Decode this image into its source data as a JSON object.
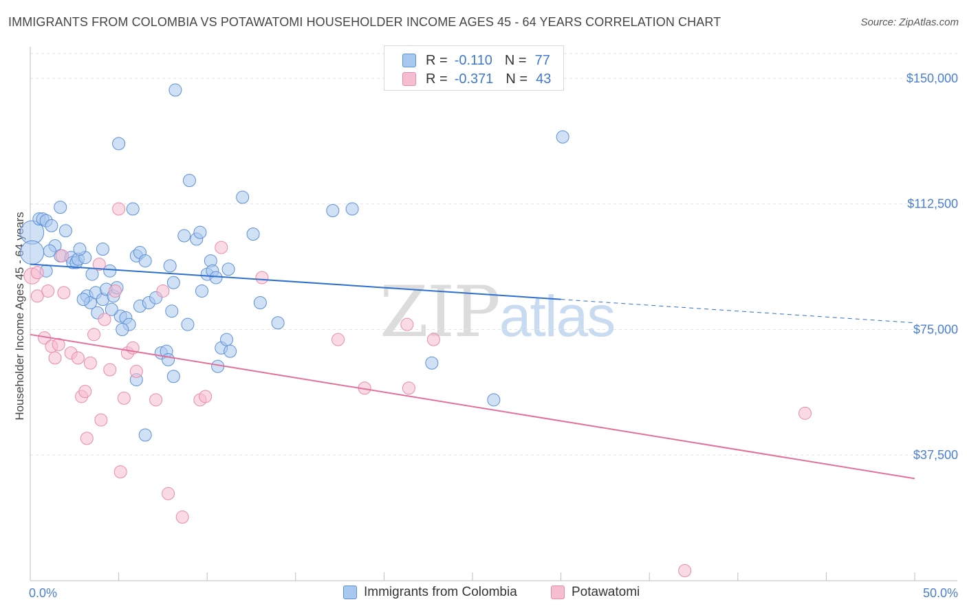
{
  "header": {
    "title": "IMMIGRANTS FROM COLOMBIA VS POTAWATOMI HOUSEHOLDER INCOME AGES 45 - 64 YEARS CORRELATION CHART",
    "source": "Source: ZipAtlas.com"
  },
  "watermark": {
    "zip": "ZIP",
    "atlas": "atlas"
  },
  "legend": {
    "r_label": "R =",
    "n_label": "N =",
    "series": [
      {
        "r": "-0.110",
        "n": "77"
      },
      {
        "r": "-0.371",
        "n": "43"
      }
    ]
  },
  "bottom_legend": {
    "items": [
      "Immigrants from Colombia",
      "Potawatomi"
    ]
  },
  "colors": {
    "blue_fill": "#a9c8ef",
    "blue_stroke": "#5b8fd6",
    "blue_line": "#2c6fcf",
    "pink_fill": "#f6bcd0",
    "pink_stroke": "#e88aab",
    "pink_line": "#e3709a",
    "grid": "#e3e3e3",
    "tick_text": "#4a7fd0"
  },
  "chart_data": {
    "type": "scatter",
    "title": "IMMIGRANTS FROM COLOMBIA VS POTAWATOMI HOUSEHOLDER INCOME AGES 45 - 64 YEARS CORRELATION CHART",
    "xlabel": "",
    "ylabel": "Householder Income Ages 45 - 64 years",
    "xlim": [
      0,
      50
    ],
    "ylim": [
      0,
      158000
    ],
    "x_ticks": [
      {
        "value": 0,
        "label": "0.0%"
      },
      {
        "value": 50,
        "label": "50.0%"
      }
    ],
    "x_minor_ticks": [
      0,
      5,
      10,
      15,
      20,
      25,
      30,
      35,
      40,
      45,
      50
    ],
    "y_ticks": [
      {
        "value": 37500,
        "label": "$37,500"
      },
      {
        "value": 75000,
        "label": "$75,000"
      },
      {
        "value": 112500,
        "label": "$112,500"
      },
      {
        "value": 150000,
        "label": "$150,000"
      }
    ],
    "grid": true,
    "legend_position": "top-center",
    "series": [
      {
        "name": "Immigrants from Colombia",
        "color": "blue",
        "r": -0.11,
        "n": 77,
        "trend": {
          "x_start": 0,
          "y_start": 94500,
          "x_solid_end": 30,
          "y_solid_end": 84000,
          "x_dash_end": 50,
          "y_dash_end": 77000
        },
        "points": [
          [
            0.1,
            104000,
            1.9
          ],
          [
            0.1,
            98000,
            1.9
          ],
          [
            0.5,
            108000,
            1
          ],
          [
            0.7,
            108000,
            1
          ],
          [
            0.9,
            107500,
            1
          ],
          [
            1.2,
            106000,
            1
          ],
          [
            0.9,
            92500,
            1
          ],
          [
            1.7,
            111500,
            1
          ],
          [
            1.4,
            100000,
            1
          ],
          [
            2.0,
            104500,
            1
          ],
          [
            1.7,
            97000,
            1
          ],
          [
            2.3,
            96500,
            1
          ],
          [
            2.4,
            95000,
            1
          ],
          [
            2.6,
            95000,
            1
          ],
          [
            2.7,
            96000,
            1
          ],
          [
            3.1,
            96500,
            1
          ],
          [
            3.5,
            91500,
            1
          ],
          [
            3.2,
            85000,
            1
          ],
          [
            3.4,
            83000,
            1
          ],
          [
            3.7,
            86000,
            1
          ],
          [
            3.8,
            80000,
            1
          ],
          [
            4.1,
            84000,
            1
          ],
          [
            4.3,
            87000,
            1
          ],
          [
            4.1,
            99000,
            1
          ],
          [
            4.7,
            85000,
            1
          ],
          [
            4.5,
            92500,
            1
          ],
          [
            4.9,
            87500,
            1
          ],
          [
            5.1,
            79000,
            1
          ],
          [
            5.4,
            78500,
            1
          ],
          [
            5.6,
            76500,
            1
          ],
          [
            5.2,
            75000,
            1
          ],
          [
            5.0,
            130500,
            1
          ],
          [
            5.8,
            111000,
            1
          ],
          [
            6.0,
            97000,
            1
          ],
          [
            6.2,
            98000,
            1
          ],
          [
            6.5,
            95500,
            1
          ],
          [
            6.2,
            82000,
            1
          ],
          [
            6.7,
            83000,
            1
          ],
          [
            7.1,
            84500,
            1
          ],
          [
            7.4,
            68000,
            1
          ],
          [
            7.7,
            68500,
            1
          ],
          [
            7.8,
            66000,
            1
          ],
          [
            8.0,
            80500,
            1
          ],
          [
            8.1,
            89000,
            1
          ],
          [
            7.9,
            94000,
            1
          ],
          [
            8.2,
            146500,
            1
          ],
          [
            8.7,
            103000,
            1
          ],
          [
            8.9,
            76500,
            1
          ],
          [
            9.0,
            119500,
            1
          ],
          [
            9.4,
            102000,
            1
          ],
          [
            9.6,
            104000,
            1
          ],
          [
            9.7,
            86500,
            1
          ],
          [
            10.0,
            91500,
            1
          ],
          [
            10.2,
            95500,
            1
          ],
          [
            10.3,
            92500,
            1
          ],
          [
            10.5,
            90500,
            1
          ],
          [
            10.8,
            69500,
            1
          ],
          [
            11.1,
            72000,
            1
          ],
          [
            11.3,
            68500,
            1
          ],
          [
            10.6,
            64000,
            1
          ],
          [
            12.0,
            114500,
            1
          ],
          [
            12.6,
            103500,
            1
          ],
          [
            13.0,
            83000,
            1
          ],
          [
            14.0,
            77000,
            1
          ],
          [
            6.0,
            60000,
            1
          ],
          [
            6.5,
            43500,
            1
          ],
          [
            8.1,
            61000,
            1
          ],
          [
            11.2,
            93000,
            1
          ],
          [
            17.1,
            110500,
            1
          ],
          [
            18.2,
            111000,
            1
          ],
          [
            22.7,
            65000,
            1
          ],
          [
            26.2,
            54000,
            1
          ],
          [
            30.1,
            132500,
            1
          ],
          [
            2.8,
            99000,
            1
          ],
          [
            4.6,
            81000,
            1
          ],
          [
            3.0,
            84000,
            1
          ],
          [
            1.1,
            98500,
            1
          ]
        ]
      },
      {
        "name": "Potawatomi",
        "color": "pink",
        "r": -0.371,
        "n": 43,
        "trend": {
          "x_start": 0,
          "y_start": 73500,
          "x_end": 50,
          "y_end": 30500
        },
        "points": [
          [
            0.1,
            91000,
            1.3
          ],
          [
            0.4,
            92000,
            1
          ],
          [
            0.4,
            85000,
            1
          ],
          [
            0.8,
            72500,
            1
          ],
          [
            1.0,
            86500,
            1
          ],
          [
            1.2,
            70000,
            1
          ],
          [
            1.4,
            66500,
            1
          ],
          [
            1.6,
            70500,
            1
          ],
          [
            1.9,
            86000,
            1
          ],
          [
            1.8,
            97000,
            1
          ],
          [
            2.3,
            68000,
            1
          ],
          [
            2.7,
            66500,
            1
          ],
          [
            2.9,
            55000,
            1
          ],
          [
            3.1,
            56500,
            1
          ],
          [
            3.2,
            42500,
            1
          ],
          [
            3.4,
            65000,
            1
          ],
          [
            3.6,
            73500,
            1
          ],
          [
            3.9,
            94500,
            1
          ],
          [
            4.0,
            48000,
            1
          ],
          [
            4.2,
            78000,
            1
          ],
          [
            4.5,
            63000,
            1
          ],
          [
            4.8,
            86500,
            1
          ],
          [
            5.0,
            111000,
            1
          ],
          [
            5.1,
            32500,
            1
          ],
          [
            5.3,
            54500,
            1
          ],
          [
            5.5,
            68000,
            1
          ],
          [
            5.8,
            69500,
            1
          ],
          [
            6.0,
            62500,
            1
          ],
          [
            7.1,
            54000,
            1
          ],
          [
            7.5,
            86500,
            1
          ],
          [
            7.8,
            26000,
            1
          ],
          [
            8.6,
            19000,
            1
          ],
          [
            9.6,
            54000,
            1
          ],
          [
            9.9,
            55000,
            1
          ],
          [
            10.8,
            99500,
            1
          ],
          [
            13.1,
            90500,
            1
          ],
          [
            17.4,
            72000,
            1
          ],
          [
            18.9,
            57500,
            1
          ],
          [
            21.3,
            76500,
            1
          ],
          [
            21.4,
            57500,
            1
          ],
          [
            22.8,
            72000,
            1
          ],
          [
            37.0,
            3000,
            1
          ],
          [
            43.8,
            50000,
            1
          ]
        ]
      }
    ]
  }
}
